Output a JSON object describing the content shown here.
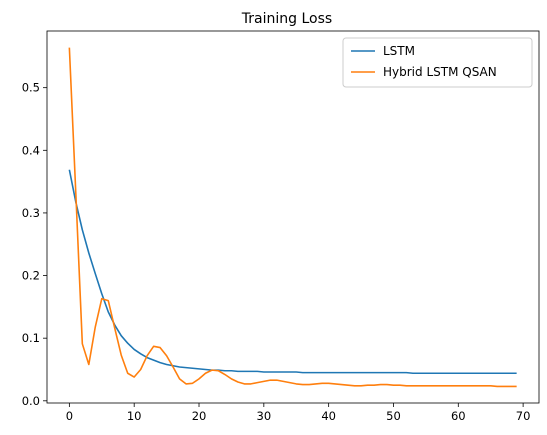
{
  "chart_data": {
    "type": "line",
    "title": "Training Loss",
    "xlabel": "",
    "ylabel": "",
    "xlim": [
      -3.45,
      72.45
    ],
    "ylim": [
      -0.0035,
      0.5905
    ],
    "xticks": [
      0,
      10,
      20,
      30,
      40,
      50,
      60,
      70
    ],
    "xtick_labels": [
      "0",
      "10",
      "20",
      "30",
      "40",
      "50",
      "60",
      "70"
    ],
    "yticks": [
      0.0,
      0.1,
      0.2,
      0.3,
      0.4,
      0.5
    ],
    "ytick_labels": [
      "0.0",
      "0.1",
      "0.2",
      "0.3",
      "0.4",
      "0.5"
    ],
    "grid": false,
    "legend_position": "top-right",
    "x": [
      0,
      1,
      2,
      3,
      4,
      5,
      6,
      7,
      8,
      9,
      10,
      11,
      12,
      13,
      14,
      15,
      16,
      17,
      18,
      19,
      20,
      21,
      22,
      23,
      24,
      25,
      26,
      27,
      28,
      29,
      30,
      31,
      32,
      33,
      34,
      35,
      36,
      37,
      38,
      39,
      40,
      41,
      42,
      43,
      44,
      45,
      46,
      47,
      48,
      49,
      50,
      51,
      52,
      53,
      54,
      55,
      56,
      57,
      58,
      59,
      60,
      61,
      62,
      63,
      64,
      65,
      66,
      67,
      68,
      69
    ],
    "series": [
      {
        "name": "LSTM",
        "color": "#1f77b4",
        "values": [
          0.369,
          0.317,
          0.273,
          0.236,
          0.203,
          0.171,
          0.142,
          0.121,
          0.104,
          0.092,
          0.082,
          0.075,
          0.069,
          0.065,
          0.061,
          0.058,
          0.056,
          0.054,
          0.053,
          0.052,
          0.051,
          0.05,
          0.049,
          0.049,
          0.048,
          0.048,
          0.047,
          0.047,
          0.047,
          0.047,
          0.046,
          0.046,
          0.046,
          0.046,
          0.046,
          0.046,
          0.045,
          0.045,
          0.045,
          0.045,
          0.045,
          0.045,
          0.045,
          0.045,
          0.045,
          0.045,
          0.045,
          0.045,
          0.045,
          0.045,
          0.045,
          0.045,
          0.045,
          0.044,
          0.044,
          0.044,
          0.044,
          0.044,
          0.044,
          0.044,
          0.044,
          0.044,
          0.044,
          0.044,
          0.044,
          0.044,
          0.044,
          0.044,
          0.044,
          0.044
        ]
      },
      {
        "name": "Hybrid LSTM QSAN",
        "color": "#ff7f0e",
        "values": [
          0.564,
          0.33,
          0.091,
          0.058,
          0.118,
          0.163,
          0.16,
          0.116,
          0.073,
          0.044,
          0.038,
          0.05,
          0.072,
          0.087,
          0.085,
          0.072,
          0.054,
          0.035,
          0.027,
          0.028,
          0.035,
          0.044,
          0.049,
          0.048,
          0.042,
          0.035,
          0.03,
          0.027,
          0.027,
          0.029,
          0.031,
          0.033,
          0.033,
          0.031,
          0.029,
          0.027,
          0.026,
          0.026,
          0.027,
          0.028,
          0.028,
          0.027,
          0.026,
          0.025,
          0.024,
          0.024,
          0.025,
          0.025,
          0.026,
          0.026,
          0.025,
          0.025,
          0.024,
          0.024,
          0.024,
          0.024,
          0.024,
          0.024,
          0.024,
          0.024,
          0.024,
          0.024,
          0.024,
          0.024,
          0.024,
          0.024,
          0.023,
          0.023,
          0.023,
          0.023
        ]
      }
    ]
  }
}
